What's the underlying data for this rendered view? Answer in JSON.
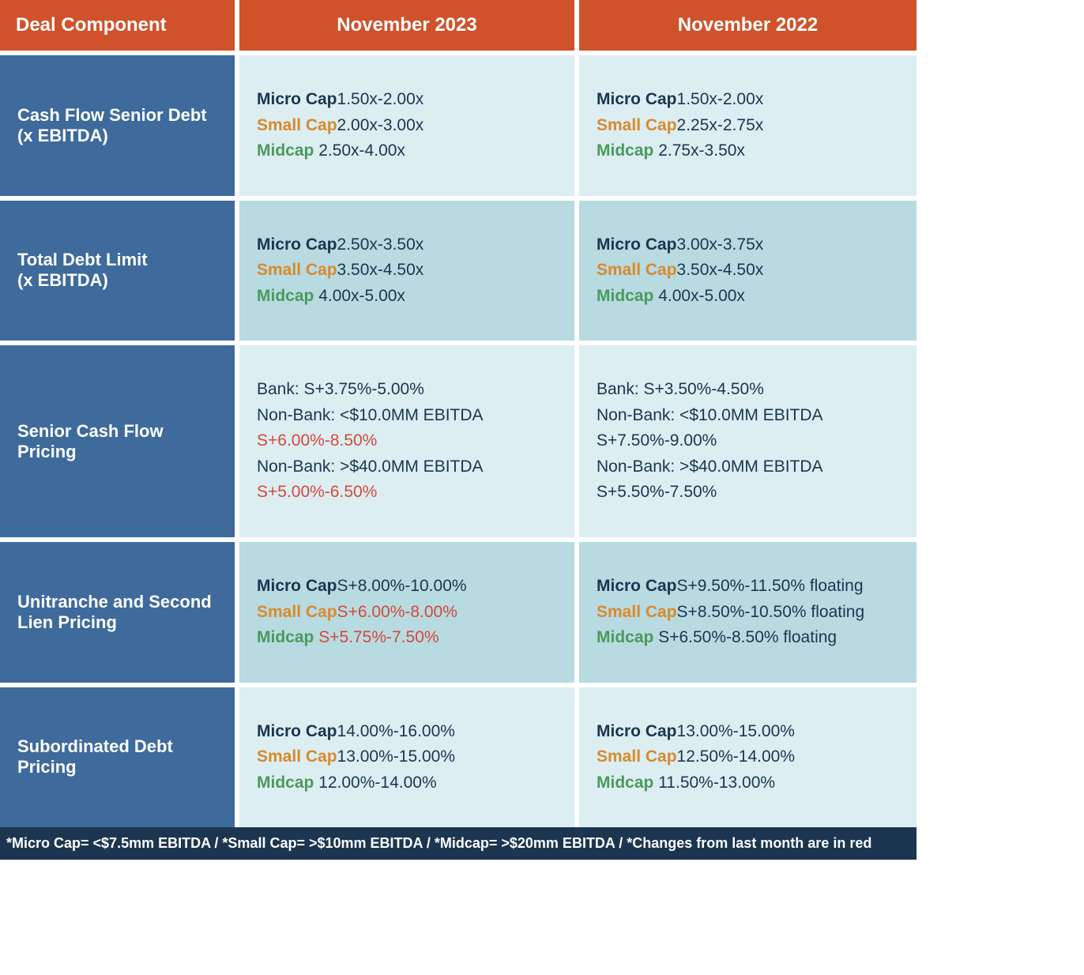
{
  "headers": {
    "component": "Deal Component",
    "period_a": "November 2023",
    "period_b": "November 2022"
  },
  "cap_labels": {
    "micro": "Micro Cap",
    "small": "Small Cap",
    "mid": "Midcap"
  },
  "rows": {
    "cash_flow_senior_debt": {
      "label": "Cash Flow Senior Debt\n(x EBITDA)",
      "a": {
        "micro": "1.50x-2.00x",
        "small": "2.00x-3.00x",
        "mid": "2.50x-4.00x"
      },
      "b": {
        "micro": "1.50x-2.00x",
        "small": "2.25x-2.75x",
        "mid": "2.75x-3.50x"
      }
    },
    "total_debt_limit": {
      "label": "Total Debt Limit\n(x EBITDA)",
      "a": {
        "micro": "2.50x-3.50x",
        "small": "3.50x-4.50x",
        "mid": "4.00x-5.00x"
      },
      "b": {
        "micro": "3.00x-3.75x",
        "small": "3.50x-4.50x",
        "mid": "4.00x-5.00x"
      }
    },
    "senior_cf_pricing": {
      "label": "Senior Cash Flow Pricing",
      "a": {
        "bank_prefix": "Bank: ",
        "bank_val": "S+3.75%-5.00%",
        "nb1_prefix": "Non-Bank:  <$10.0MM EBITDA ",
        "nb1_val": "S+6.00%-8.50%",
        "nb2_prefix": "Non-Bank: >$40.0MM EBITDA ",
        "nb2_val": "S+5.00%-6.50%"
      },
      "b": {
        "bank": "Bank: S+3.50%-4.50%",
        "nb1": "Non-Bank: <$10.0MM EBITDA S+7.50%-9.00%",
        "nb2": "Non-Bank: >$40.0MM EBITDA S+5.50%-7.50%"
      }
    },
    "unitranche": {
      "label": "Unitranche and Second Lien Pricing",
      "a": {
        "micro": "S+8.00%-10.00%",
        "small": "S+6.00%-8.00%",
        "mid": "S+5.75%-7.50%"
      },
      "b": {
        "micro": "S+9.50%-11.50% floating",
        "small": "S+8.50%-10.50% floating",
        "mid": "S+6.50%-8.50% floating"
      }
    },
    "sub_debt": {
      "label": "Subordinated Debt Pricing",
      "a": {
        "micro": "14.00%-16.00%",
        "small": "13.00%-15.00%",
        "mid": "12.00%-14.00%"
      },
      "b": {
        "micro": "13.00%-15.00%",
        "small": "12.50%-14.00%",
        "mid": "11.50%-13.00%"
      }
    }
  },
  "footnote": "*Micro Cap= <$7.5mm EBITDA / *Small Cap= >$10mm EBITDA / *Midcap= >$20mm EBITDA / *Changes from last month are in red",
  "colors": {
    "header_bg": "#d0522a",
    "rowhead_bg": "#3e6a9c",
    "band_light": "#dceef2",
    "band_dark": "#b8dae1",
    "text_dark": "#1c3550",
    "micro_color": "#1c3550",
    "small_color": "#d98a2b",
    "mid_color": "#4a9a5d",
    "changed_color": "#d24a3a",
    "footnote_bg": "#1c3550"
  }
}
